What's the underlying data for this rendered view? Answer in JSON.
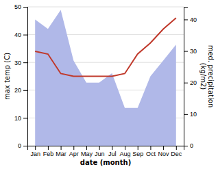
{
  "chart_data": {
    "type": "line",
    "categories": [
      "Jan",
      "Feb",
      "Mar",
      "Apr",
      "May",
      "Jun",
      "Jul",
      "Aug",
      "Sep",
      "Oct",
      "Nov",
      "Dec"
    ],
    "series": [
      {
        "type": "area",
        "color": "#b0b8e8",
        "axis": "y2",
        "values": [
          40,
          37,
          43,
          27,
          20,
          20,
          23,
          12,
          12,
          22,
          27,
          32
        ]
      },
      {
        "type": "line",
        "color": "#c0392b",
        "values": [
          34,
          33,
          26,
          25,
          25,
          25,
          25,
          26,
          33,
          37,
          42,
          46
        ]
      }
    ],
    "ylim": [
      0,
      50
    ],
    "yticks": [
      0,
      10,
      20,
      30,
      40,
      50
    ],
    "y2lim": [
      0,
      44
    ],
    "y2ticks": [
      0,
      10,
      20,
      30,
      40
    ],
    "ylabel": "max temp (C)",
    "y2label": "med. precipitation\n(kg/m2)",
    "xlabel": "date (month)",
    "grid": true
  }
}
